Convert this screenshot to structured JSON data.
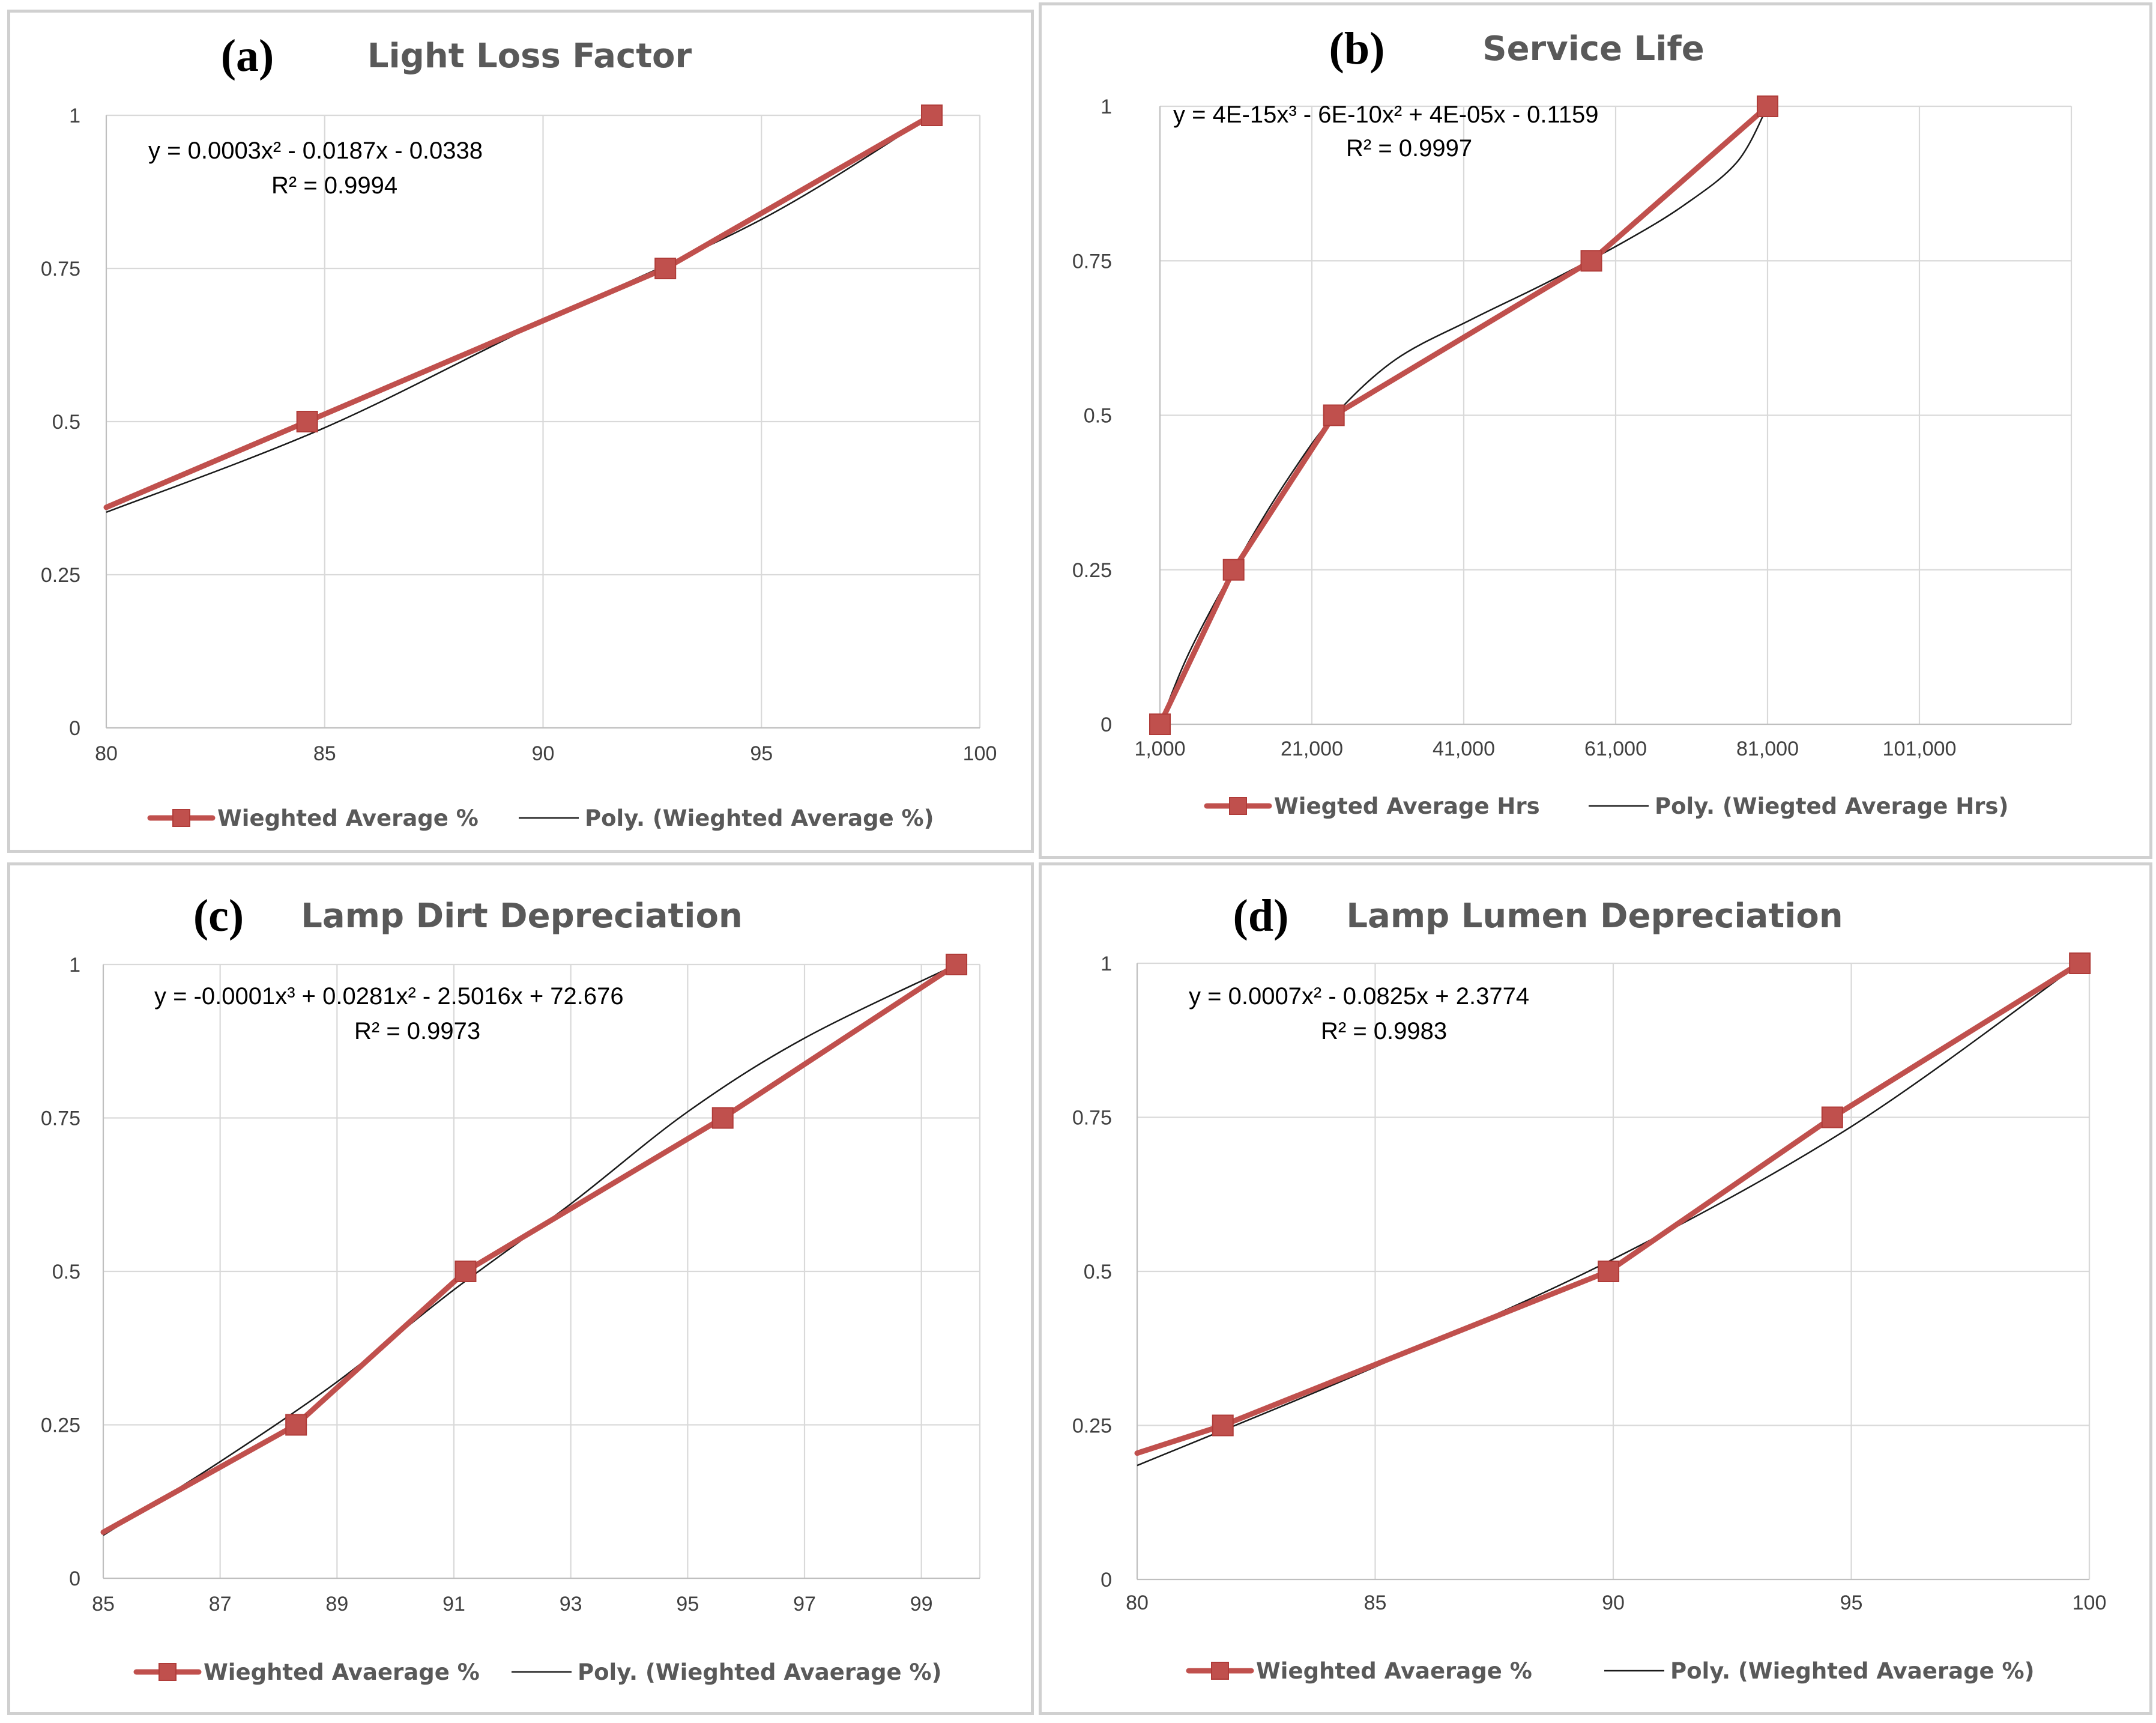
{
  "chart_data": [
    {
      "id": "a",
      "type": "line",
      "panel_label": "(a)",
      "title": "Light Loss Factor",
      "x_ticks": [
        80,
        85,
        90,
        95,
        100
      ],
      "x_tick_labels": [
        "80",
        "85",
        "90",
        "95",
        "100"
      ],
      "xlim": [
        80,
        100
      ],
      "y_ticks": [
        0,
        0.25,
        0.5,
        0.75,
        1
      ],
      "y_tick_labels": [
        "0",
        "0.25",
        "0.5",
        "0.75",
        "1"
      ],
      "ylim": [
        0,
        1
      ],
      "series": [
        {
          "name": "Wieghted Average %",
          "x": [
            80,
            84.6,
            92.8,
            98.9
          ],
          "y": [
            0.36,
            0.5,
            0.75,
            1.0
          ]
        }
      ],
      "trendline": {
        "name": "Poly. (Wieghted Average %)",
        "order": 2,
        "coefficients": [
          0.0003,
          -0.0187,
          -0.0338
        ],
        "plot_anchor": [
          [
            80,
            0.352
          ],
          [
            85,
            0.49
          ],
          [
            90,
            0.664
          ],
          [
            95,
            0.83
          ],
          [
            98.9,
            1.0
          ]
        ],
        "equation": "y = 0.0003x² - 0.0187x - 0.0338",
        "r2": "R² = 0.9994"
      },
      "grid": true,
      "legend_position": "bottom"
    },
    {
      "id": "b",
      "type": "line",
      "panel_label": "(b)",
      "title": "Service Life",
      "x_ticks": [
        1000,
        21000,
        41000,
        61000,
        81000,
        101000
      ],
      "x_tick_labels": [
        "1,000",
        "21,000",
        "41,000",
        "61,000",
        "81,000",
        "101,000"
      ],
      "xlim": [
        1000,
        121000
      ],
      "y_ticks": [
        0,
        0.25,
        0.5,
        0.75,
        1
      ],
      "y_tick_labels": [
        "0",
        "0.25",
        "0.5",
        "0.75",
        "1"
      ],
      "ylim": [
        0,
        1
      ],
      "series": [
        {
          "name": "Wiegted Average Hrs",
          "x": [
            1000,
            10700,
            23900,
            57800,
            81000
          ],
          "y": [
            0,
            0.25,
            0.5,
            0.75,
            1.0
          ]
        }
      ],
      "trendline": {
        "name": "Poly. (Wiegted Average Hrs)",
        "order": 3,
        "coefficients": [
          4e-15,
          -6e-10,
          4e-05,
          -0.1159
        ],
        "plot_anchor": [
          [
            1000,
            0.0
          ],
          [
            5000,
            0.12
          ],
          [
            12000,
            0.28
          ],
          [
            18000,
            0.4
          ],
          [
            24000,
            0.5
          ],
          [
            32000,
            0.59
          ],
          [
            42000,
            0.655
          ],
          [
            52000,
            0.715
          ],
          [
            62000,
            0.78
          ],
          [
            70000,
            0.84
          ],
          [
            77000,
            0.91
          ],
          [
            81000,
            1.0
          ]
        ],
        "equation": "y = 4E-15x³ - 6E-10x² + 4E-05x - 0.1159",
        "r2": "R² = 0.9997"
      },
      "grid": true,
      "legend_position": "bottom"
    },
    {
      "id": "c",
      "type": "line",
      "panel_label": "(c)",
      "title": "Lamp Dirt Depreciation",
      "x_ticks": [
        85,
        87,
        89,
        91,
        93,
        95,
        97,
        99
      ],
      "x_tick_labels": [
        "85",
        "87",
        "89",
        "91",
        "93",
        "95",
        "97",
        "99"
      ],
      "xlim": [
        85,
        100
      ],
      "y_ticks": [
        0,
        0.25,
        0.5,
        0.75,
        1
      ],
      "y_tick_labels": [
        "0",
        "0.25",
        "0.5",
        "0.75",
        "1"
      ],
      "ylim": [
        0,
        1
      ],
      "series": [
        {
          "name": "Wieghted Avaerage %",
          "x": [
            85,
            88.3,
            91.2,
            95.6,
            99.6
          ],
          "y": [
            0.075,
            0.25,
            0.5,
            0.75,
            1.0
          ]
        }
      ],
      "trendline": {
        "name": "Poly. (Wieghted Avaerage %)",
        "order": 3,
        "coefficients": [
          -0.0001,
          0.0281,
          -2.5016,
          72.676
        ],
        "plot_anchor": [
          [
            85,
            0.07
          ],
          [
            87,
            0.19
          ],
          [
            89,
            0.32
          ],
          [
            91,
            0.47
          ],
          [
            93,
            0.61
          ],
          [
            95,
            0.76
          ],
          [
            97,
            0.88
          ],
          [
            99.6,
            1.0
          ]
        ],
        "equation": "y = -0.0001x³ + 0.0281x² - 2.5016x + 72.676",
        "r2": "R² = 0.9973"
      },
      "grid": true,
      "legend_position": "bottom"
    },
    {
      "id": "d",
      "type": "line",
      "panel_label": "(d)",
      "title": "Lamp Lumen Depreciation",
      "x_ticks": [
        80,
        85,
        90,
        95,
        100
      ],
      "x_tick_labels": [
        "80",
        "85",
        "90",
        "95",
        "100"
      ],
      "xlim": [
        80,
        100
      ],
      "y_ticks": [
        0,
        0.25,
        0.5,
        0.75,
        1
      ],
      "y_tick_labels": [
        "0",
        "0.25",
        "0.5",
        "0.75",
        "1"
      ],
      "ylim": [
        0,
        1
      ],
      "series": [
        {
          "name": "Wieghted Avaerage  %",
          "x": [
            80,
            81.8,
            89.9,
            94.6,
            99.8
          ],
          "y": [
            0.205,
            0.25,
            0.5,
            0.75,
            1.0
          ]
        }
      ],
      "trendline": {
        "name": "Poly. (Wieghted Avaerage  %)",
        "order": 2,
        "coefficients": [
          0.0007,
          -0.0825,
          2.3774
        ],
        "plot_anchor": [
          [
            80,
            0.185
          ],
          [
            85,
            0.345
          ],
          [
            90,
            0.52
          ],
          [
            95,
            0.735
          ],
          [
            99.8,
            1.0
          ]
        ],
        "equation": "y = 0.0007x² - 0.0825x + 2.3774",
        "r2": "R² = 0.9983"
      },
      "grid": true,
      "legend_position": "bottom"
    }
  ]
}
